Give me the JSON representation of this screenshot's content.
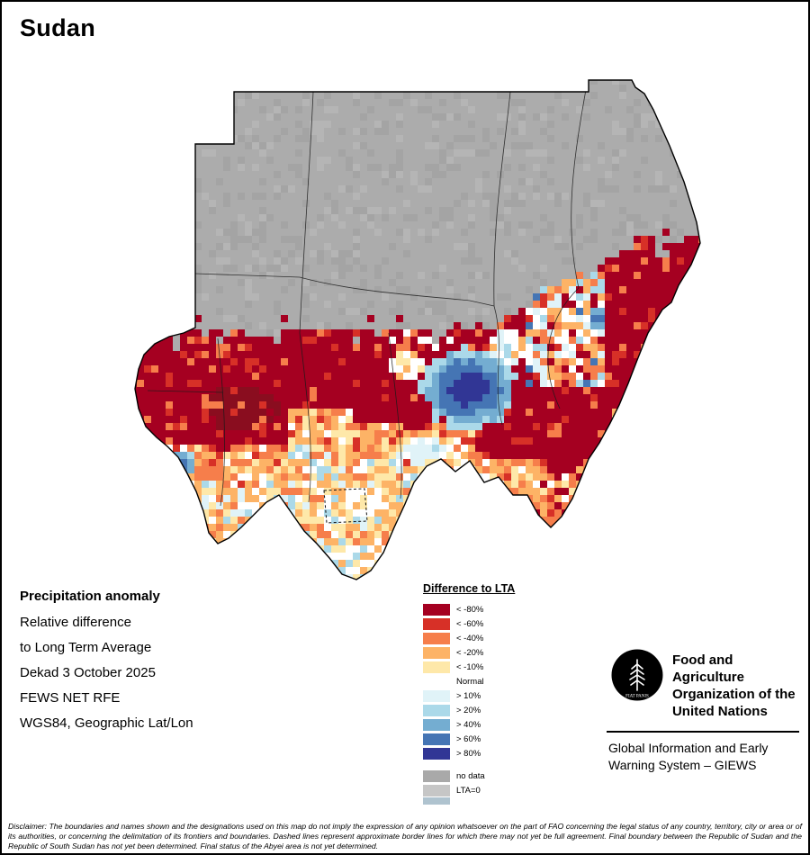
{
  "page": {
    "title": "Sudan"
  },
  "info": {
    "heading": "Precipitation anomaly",
    "lines": [
      "Relative difference",
      "to Long Term Average",
      "Dekad 3 October 2025",
      "FEWS NET RFE",
      "WGS84, Geographic Lat/Lon"
    ]
  },
  "legend": {
    "title": "Difference to LTA",
    "items": [
      {
        "label": "< -80%",
        "color": "#A50021"
      },
      {
        "label": "< -60%",
        "color": "#D73027"
      },
      {
        "label": "< -40%",
        "color": "#F67E4B"
      },
      {
        "label": "< -20%",
        "color": "#FDB366"
      },
      {
        "label": "< -10%",
        "color": "#FEE8A9"
      },
      {
        "label": "Normal",
        "color": "#FFFFFF"
      },
      {
        "label": "> 10%",
        "color": "#E0F3F8"
      },
      {
        "label": "> 20%",
        "color": "#ABD9E9"
      },
      {
        "label": "> 40%",
        "color": "#74ADD1"
      },
      {
        "label": "> 60%",
        "color": "#4575B4"
      },
      {
        "label": "> 80%",
        "color": "#313695"
      }
    ],
    "extras": [
      {
        "label": "no data",
        "color": "#A9A9A9"
      },
      {
        "label": "LTA=0",
        "color": "#C6C6C6"
      },
      {
        "label": "",
        "color": "#AFC3CF"
      }
    ]
  },
  "fao": {
    "logo_motto": "FIAT PANIS",
    "org_lines": [
      "Food and Agriculture",
      "Organization of the",
      "United Nations"
    ],
    "giews_lines": [
      "Global Information and Early",
      "Warning System – GIEWS"
    ]
  },
  "map_palette": {
    "minus80": "#A50021",
    "minus60": "#D73027",
    "minus40": "#F67E4B",
    "minus20": "#FDB366",
    "minus10": "#FEE8A9",
    "normal": "#FFFFFF",
    "plus10": "#E0F3F8",
    "plus20": "#ABD9E9",
    "plus40": "#74ADD1",
    "plus60": "#4575B4",
    "plus80": "#313695",
    "no_data": "#ACACAC",
    "lta0": "#C6C6C6",
    "dark_core": "#8A0D1F"
  },
  "disclaimer": "Disclaimer: The boundaries and names shown and the designations used on this map do not imply the expression of any opinion whatsoever on the part of FAO concerning the legal status of any country, territory, city or area or of its authorities, or concerning the delimitation of its frontiers and boundaries. Dashed lines represent approximate border lines for which there may not yet be full agreement. Final boundary between the Republic of Sudan and the Republic of South Sudan has not yet been determined. Final status of the Abyei area is not yet determined."
}
